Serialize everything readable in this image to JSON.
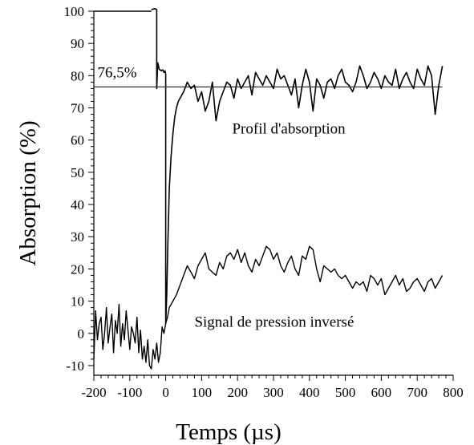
{
  "chart_data": {
    "type": "line",
    "xlabel": "Temps (µs)",
    "ylabel": "Absorption (%)",
    "xlim": [
      -200,
      800
    ],
    "ylim": [
      -13,
      100
    ],
    "x_ticks": [
      -200,
      -100,
      0,
      100,
      200,
      300,
      400,
      500,
      600,
      700,
      800
    ],
    "x_tick_labels": [
      "-200",
      "-100",
      "0",
      "100",
      "200",
      "300",
      "400",
      "500",
      "600",
      "700",
      "800"
    ],
    "y_ticks": [
      -10,
      0,
      10,
      20,
      30,
      40,
      50,
      60,
      70,
      80,
      90,
      100
    ],
    "y_tick_labels": [
      "-10",
      "0",
      "10",
      "20",
      "30",
      "40",
      "50",
      "60",
      "70",
      "80",
      "90",
      "100"
    ],
    "grid": false,
    "annotations": [
      {
        "text": "76,5%",
        "x": -190,
        "y": 79.5
      },
      {
        "text": "Profil d'absorption",
        "x": 185,
        "y": 62
      },
      {
        "text": "Signal de pression inversé",
        "x": 80,
        "y": 2
      }
    ],
    "reference_line": {
      "y": 76.5,
      "x_start": -200,
      "x_end": 770
    },
    "series": [
      {
        "x": [
          -40,
          -30,
          -25,
          -25,
          -22,
          -18,
          -12,
          -8,
          -5,
          -2,
          0,
          0,
          3,
          6,
          10,
          15,
          20,
          25,
          30,
          35,
          40,
          50,
          60,
          70,
          80,
          90,
          100,
          110,
          120,
          130,
          140,
          150,
          160,
          170,
          180,
          190,
          200,
          210,
          220,
          230,
          240,
          250,
          260,
          270,
          280,
          290,
          300,
          310,
          320,
          330,
          340,
          350,
          360,
          370,
          380,
          390,
          400,
          410,
          420,
          430,
          440,
          450,
          460,
          470,
          480,
          490,
          500,
          510,
          520,
          530,
          540,
          550,
          560,
          570,
          580,
          590,
          600,
          610,
          620,
          630,
          640,
          650,
          660,
          670,
          680,
          690,
          700,
          710,
          720,
          730,
          740,
          750,
          760,
          770
        ],
        "values": [
          100.5,
          100.8,
          100.5,
          76,
          84,
          82,
          81.5,
          81.8,
          81,
          81.5,
          80.5,
          3,
          12,
          28,
          45,
          55,
          62,
          67,
          70,
          72,
          73,
          75,
          78,
          76,
          77,
          72,
          75,
          69,
          72,
          78,
          66,
          72,
          75,
          78,
          77,
          73,
          79,
          76,
          78,
          80,
          74,
          81,
          79,
          77,
          80,
          78,
          76,
          82,
          79,
          80,
          77,
          74,
          79,
          70,
          77,
          82,
          78,
          69,
          79,
          77,
          73,
          78,
          79,
          76,
          80,
          82,
          78,
          77,
          75,
          78,
          83,
          80,
          76,
          78,
          81,
          79,
          76,
          80,
          78,
          77,
          82,
          76,
          79,
          81,
          78,
          76,
          82,
          79,
          77,
          83,
          80,
          68,
          77,
          83
        ]
      },
      {
        "x": [
          -200,
          -40,
          -40
        ],
        "values": [
          100,
          100,
          100
        ]
      },
      {
        "x": [
          -200,
          -195,
          -190,
          -185,
          -180,
          -175,
          -170,
          -165,
          -160,
          -155,
          -150,
          -145,
          -140,
          -135,
          -130,
          -125,
          -120,
          -115,
          -110,
          -105,
          -100,
          -95,
          -90,
          -85,
          -80,
          -75,
          -70,
          -65,
          -60,
          -55,
          -50,
          -45,
          -40,
          -35,
          -30,
          -25,
          -20,
          -15,
          -10,
          -5,
          0,
          5,
          10,
          20,
          30,
          40,
          50,
          60,
          70,
          80,
          90,
          100,
          110,
          120,
          130,
          140,
          150,
          160,
          170,
          180,
          190,
          200,
          210,
          220,
          230,
          240,
          250,
          260,
          270,
          280,
          290,
          300,
          310,
          320,
          330,
          340,
          350,
          360,
          370,
          380,
          390,
          400,
          410,
          420,
          430,
          440,
          450,
          460,
          470,
          480,
          490,
          500,
          510,
          520,
          530,
          540,
          550,
          560,
          570,
          580,
          590,
          600,
          610,
          620,
          630,
          640,
          650,
          660,
          670,
          680,
          690,
          700,
          710,
          720,
          730,
          740,
          750,
          760,
          770
        ],
        "values": [
          -8,
          7,
          -2,
          3,
          5,
          -5,
          0,
          8,
          -3,
          2,
          6,
          -6,
          4,
          0,
          9,
          -4,
          3,
          -2,
          7,
          1,
          -5,
          2,
          0,
          -3,
          5,
          -6,
          1,
          -8,
          -4,
          -9,
          -2,
          -10,
          -11,
          -5,
          -8,
          -3,
          -9,
          -6,
          2,
          0,
          3,
          5,
          8,
          10,
          12,
          15,
          18,
          21,
          19,
          17,
          21,
          23,
          25,
          20,
          19,
          18,
          22,
          20,
          24,
          25,
          23,
          26,
          22,
          25,
          21,
          19,
          23,
          21,
          24,
          27,
          26,
          23,
          25,
          21,
          19,
          22,
          24,
          20,
          18,
          24,
          23,
          27,
          26,
          20,
          16,
          21,
          20,
          19,
          20,
          18,
          17,
          18,
          16,
          14,
          16,
          15,
          16,
          13,
          18,
          17,
          15,
          17,
          12,
          14,
          16,
          18,
          15,
          17,
          13,
          14,
          16,
          17,
          15,
          13,
          16,
          17,
          14,
          16,
          18
        ]
      }
    ]
  }
}
